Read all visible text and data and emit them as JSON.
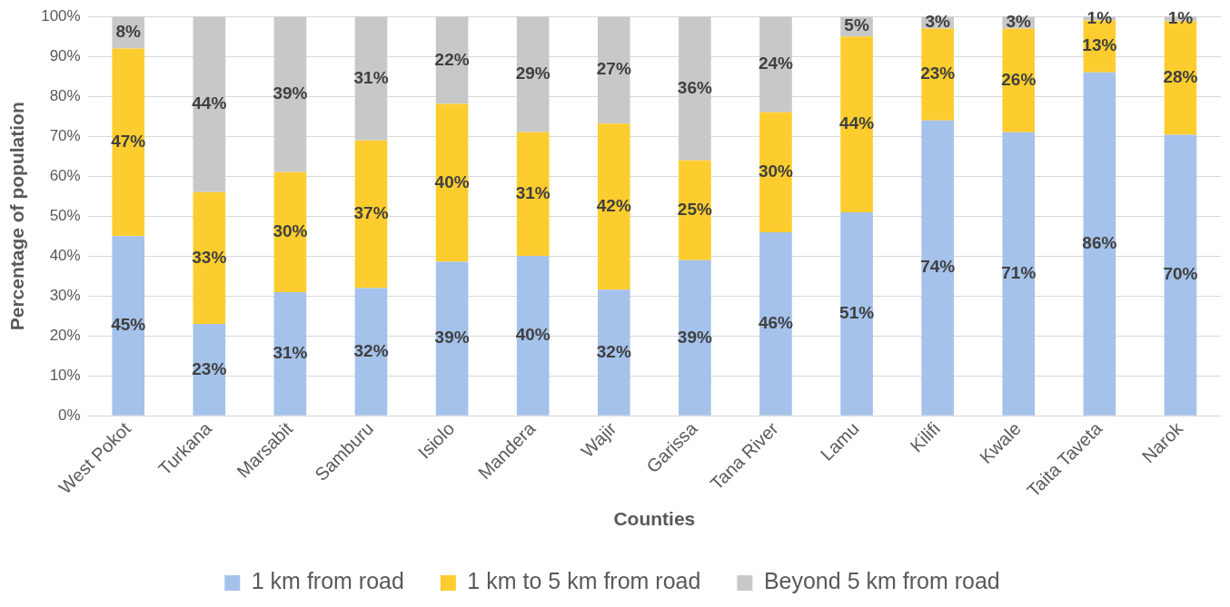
{
  "chart_data": {
    "type": "bar",
    "stacked": true,
    "xlabel": "Counties",
    "ylabel": "Percentage of population",
    "categories": [
      "West Pokot",
      "Turkana",
      "Marsabit",
      "Samburu",
      "Isiolo",
      "Mandera",
      "Wajir",
      "Garissa",
      "Tana River",
      "Lamu",
      "Kilifi",
      "Kwale",
      "Taita Taveta",
      "Narok"
    ],
    "ylim": [
      0,
      100
    ],
    "yticks": [
      {
        "value": 0,
        "label": "0%"
      },
      {
        "value": 10,
        "label": "10%"
      },
      {
        "value": 20,
        "label": "20%"
      },
      {
        "value": 30,
        "label": "30%"
      },
      {
        "value": 40,
        "label": "40%"
      },
      {
        "value": 50,
        "label": "50%"
      },
      {
        "value": 60,
        "label": "60%"
      },
      {
        "value": 70,
        "label": "70%"
      },
      {
        "value": 80,
        "label": "80%"
      },
      {
        "value": 90,
        "label": "90%"
      },
      {
        "value": 100,
        "label": "100%"
      }
    ],
    "grid": "y",
    "legend": "bottom",
    "series": [
      {
        "name": "1 km from road",
        "color": "#a4c2ea",
        "values": [
          45,
          23,
          31,
          32,
          38.6,
          40,
          31.6,
          39,
          46,
          51,
          74,
          71,
          86,
          70.4
        ],
        "value_labels": [
          "45%",
          "23%",
          "31%",
          "32%",
          "39%",
          "40%",
          "32%",
          "39%",
          "46%",
          "51%",
          "74%",
          "71%",
          "86%",
          "70%"
        ]
      },
      {
        "name": "1 km to 5 km from road",
        "color": "#fdcd2f",
        "values": [
          47,
          33,
          30,
          37,
          39.5,
          31,
          41.6,
          25,
          30,
          44,
          23,
          26,
          13,
          28.4
        ],
        "value_labels": [
          "47%",
          "33%",
          "30%",
          "37%",
          "40%",
          "31%",
          "42%",
          "25%",
          "30%",
          "44%",
          "23%",
          "26%",
          "13%",
          "28%"
        ]
      },
      {
        "name": "Beyond 5 km from road",
        "color": "#c8c8c8",
        "values": [
          8,
          44,
          39,
          31,
          21.9,
          29,
          26.8,
          36,
          24,
          5,
          3,
          3,
          1,
          1.2
        ],
        "value_labels": [
          "8%",
          "44%",
          "39%",
          "31%",
          "22%",
          "29%",
          "27%",
          "36%",
          "24%",
          "5%",
          "3%",
          "3%",
          "1%",
          "1%"
        ]
      }
    ]
  }
}
